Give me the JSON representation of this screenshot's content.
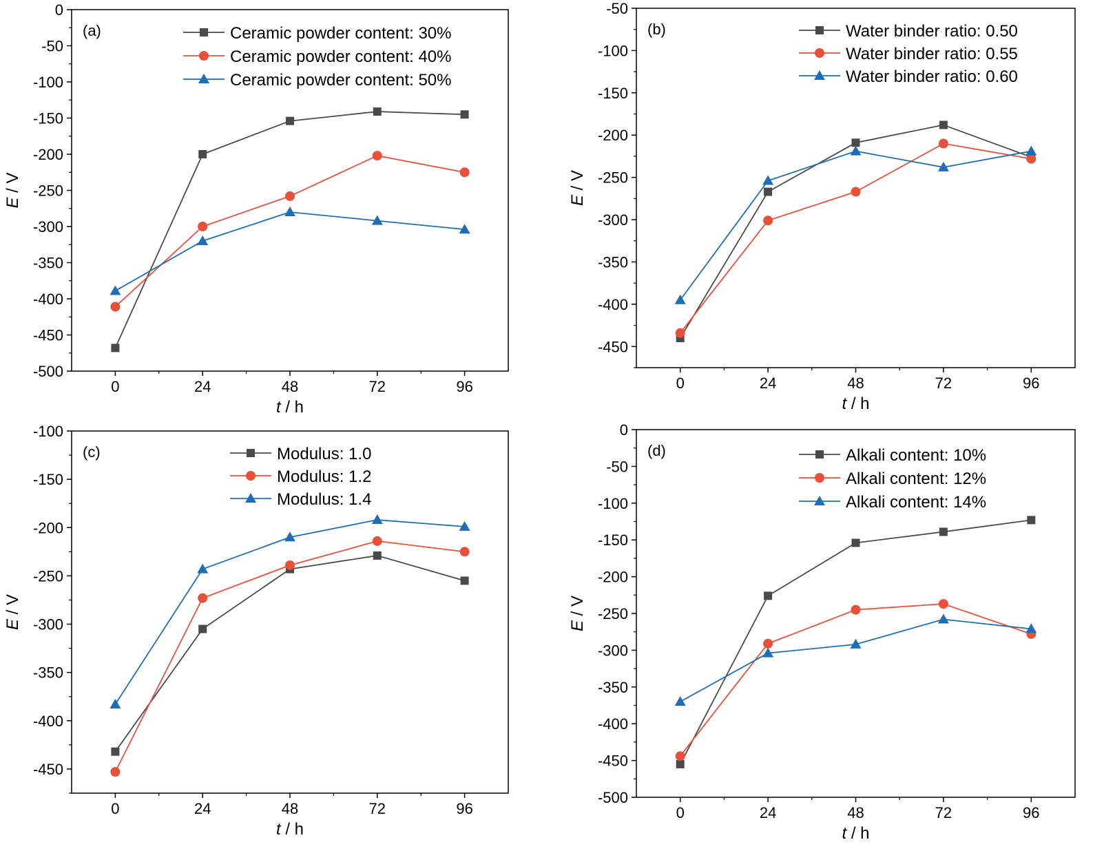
{
  "series_colors": [
    "#4a4a4a",
    "#e8503a",
    "#1f6eb5"
  ],
  "markers": [
    "square",
    "circle",
    "triangle"
  ],
  "chart_data": [
    {
      "type": "line",
      "panel_label": "(a)",
      "x": [
        0,
        24,
        48,
        72,
        96
      ],
      "xticks": [
        "0",
        "24",
        "48",
        "72",
        "96"
      ],
      "xlim": [
        -12,
        108
      ],
      "ylim": [
        -500,
        0
      ],
      "yticks": [
        0,
        -50,
        -100,
        -150,
        -200,
        -250,
        -300,
        -350,
        -400,
        -450,
        -500
      ],
      "ytick_labels": [
        "0",
        "-50",
        "-100",
        "-150",
        "-200",
        "-250",
        "-300",
        "-350",
        "-400",
        "-450",
        "-500"
      ],
      "xlabel": {
        "var": "t",
        "unit": " / h"
      },
      "ylabel": {
        "var": "E",
        "unit": " / V"
      },
      "legend_position": "top-right",
      "series": [
        {
          "name": "Ceramic powder content: 30%",
          "values": [
            -468,
            -200,
            -154,
            -141,
            -145
          ]
        },
        {
          "name": "Ceramic powder content: 40%",
          "values": [
            -411,
            -300,
            -258,
            -202,
            -225
          ]
        },
        {
          "name": "Ceramic powder content: 50%",
          "values": [
            -389,
            -320,
            -280,
            -292,
            -304
          ]
        }
      ]
    },
    {
      "type": "line",
      "panel_label": "(b)",
      "x": [
        0,
        24,
        48,
        72,
        96
      ],
      "xticks": [
        "0",
        "24",
        "48",
        "72",
        "96"
      ],
      "xlim": [
        -12,
        108
      ],
      "ylim": [
        -475,
        -50
      ],
      "yticks": [
        -50,
        -100,
        -150,
        -200,
        -250,
        -300,
        -350,
        -400,
        -450
      ],
      "ytick_labels": [
        "-50",
        "-100",
        "-150",
        "-200",
        "-250",
        "-300",
        "-350",
        "-400",
        "-450"
      ],
      "xlabel": {
        "var": "t",
        "unit": " / h"
      },
      "ylabel": {
        "var": "E",
        "unit": " / V"
      },
      "legend_position": "top-right",
      "series": [
        {
          "name": "Water binder ratio: 0.50",
          "values": [
            -440,
            -267,
            -209,
            -188,
            -226
          ]
        },
        {
          "name": "Water binder ratio: 0.55",
          "values": [
            -434,
            -301,
            -267,
            -210,
            -228
          ]
        },
        {
          "name": "Water binder ratio: 0.60",
          "values": [
            -395,
            -254,
            -219,
            -238,
            -219
          ]
        }
      ]
    },
    {
      "type": "line",
      "panel_label": "(c)",
      "x": [
        0,
        24,
        48,
        72,
        96
      ],
      "xticks": [
        "0",
        "24",
        "48",
        "72",
        "96"
      ],
      "xlim": [
        -12,
        108
      ],
      "ylim": [
        -475,
        -100
      ],
      "yticks": [
        -100,
        -150,
        -200,
        -250,
        -300,
        -350,
        -400,
        -450
      ],
      "ytick_labels": [
        "-100",
        "-150",
        "-200",
        "-250",
        "-300",
        "-350",
        "-400",
        "-450"
      ],
      "xlabel": {
        "var": "t",
        "unit": " / h"
      },
      "ylabel": {
        "var": "E",
        "unit": " / V"
      },
      "legend_position": "top-center",
      "series": [
        {
          "name": "Modulus: 1.0",
          "values": [
            -432,
            -305,
            -243,
            -229,
            -255
          ]
        },
        {
          "name": "Modulus: 1.2",
          "values": [
            -453,
            -273,
            -239,
            -214,
            -225
          ]
        },
        {
          "name": "Modulus: 1.4",
          "values": [
            -383,
            -243,
            -210,
            -192,
            -199
          ]
        }
      ]
    },
    {
      "type": "line",
      "panel_label": "(d)",
      "x": [
        0,
        24,
        48,
        72,
        96
      ],
      "xticks": [
        "0",
        "24",
        "48",
        "72",
        "96"
      ],
      "xlim": [
        -12,
        108
      ],
      "ylim": [
        -500,
        0
      ],
      "yticks": [
        0,
        -50,
        -100,
        -150,
        -200,
        -250,
        -300,
        -350,
        -400,
        -450,
        -500
      ],
      "ytick_labels": [
        "0",
        "-50",
        "-100",
        "-150",
        "-200",
        "-250",
        "-300",
        "-350",
        "-400",
        "-450",
        "-500"
      ],
      "xlabel": {
        "var": "t",
        "unit": " / h"
      },
      "ylabel": {
        "var": "E",
        "unit": " / V"
      },
      "legend_position": "top-right",
      "series": [
        {
          "name": "Alkali content: 10%",
          "values": [
            -455,
            -226,
            -154,
            -139,
            -123
          ]
        },
        {
          "name": "Alkali content: 12%",
          "values": [
            -444,
            -291,
            -245,
            -237,
            -278
          ]
        },
        {
          "name": "Alkali content: 14%",
          "values": [
            -370,
            -304,
            -292,
            -258,
            -271
          ]
        }
      ]
    }
  ]
}
